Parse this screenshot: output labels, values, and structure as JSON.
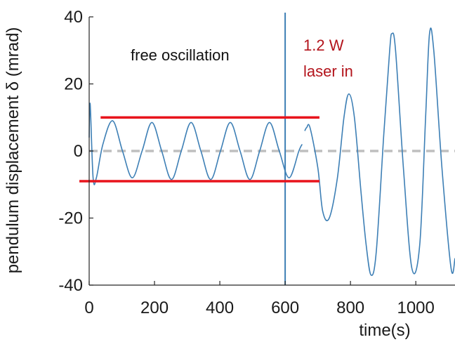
{
  "chart_data": {
    "type": "line",
    "title": "",
    "xlabel": "time(s)",
    "ylabel": "pendulum displacement δ (mrad)",
    "xlim": [
      0,
      1120
    ],
    "ylim": [
      -40,
      40
    ],
    "x_ticks": [
      "0",
      "200",
      "400",
      "600",
      "800",
      "1000"
    ],
    "y_ticks": [
      "40",
      "20",
      "0",
      "-20",
      "-40"
    ],
    "grid": false,
    "colors": {
      "series": "#3d7fb5",
      "envelope": "#e8141c",
      "zero_line": "#bfbfbf",
      "laser_marker": "#3d7fb5",
      "annotation_red": "#b3141c"
    },
    "series": [
      {
        "segments": [
          {
            "x": [
              0,
              3,
              12,
              22,
              42,
              72,
              102,
              132,
              162,
              192,
              222,
              252,
              282,
              312,
              342,
              372,
              402,
              432,
              462,
              492,
              522,
              552,
              582,
              612,
              642,
              652
            ],
            "y": [
              4,
              14,
              -8,
              -8,
              2,
              9,
              0,
              -8,
              0,
              8.5,
              0,
              -8.5,
              0,
              8.5,
              0,
              -8.5,
              0,
              8.5,
              0,
              -8.5,
              0,
              8.5,
              0,
              -8,
              0,
              2
            ]
          },
          {
            "x": [
              660,
              666,
              676,
              700,
              715,
              735,
              760,
              780,
              795,
              812,
              832,
              848,
              863,
              879,
              902,
              920,
              927,
              938,
              962,
              988,
              1012,
              1030,
              1042,
              1055,
              1080,
              1108,
              1120
            ],
            "y": [
              6,
              7,
              7,
              -5,
              -18,
              -20,
              -8,
              10,
              17,
              10,
              -12,
              -28,
              -37,
              -30,
              5,
              30,
              35,
              30,
              -5,
              -35,
              -28,
              10,
              35,
              30,
              -5,
              -35,
              -32
            ]
          }
        ]
      }
    ],
    "reference_lines": {
      "zero_dashed_y": 0,
      "envelope_upper": {
        "y": 10,
        "x": [
          35,
          705
        ]
      },
      "envelope_lower": {
        "y": -9,
        "x": [
          -30,
          705
        ]
      },
      "laser_vertical_x": 600
    },
    "annotations": [
      {
        "text": "free oscillation",
        "color": "black"
      },
      {
        "text_line1": "1.2 W",
        "text_line2": "laser in",
        "color": "red"
      }
    ]
  }
}
